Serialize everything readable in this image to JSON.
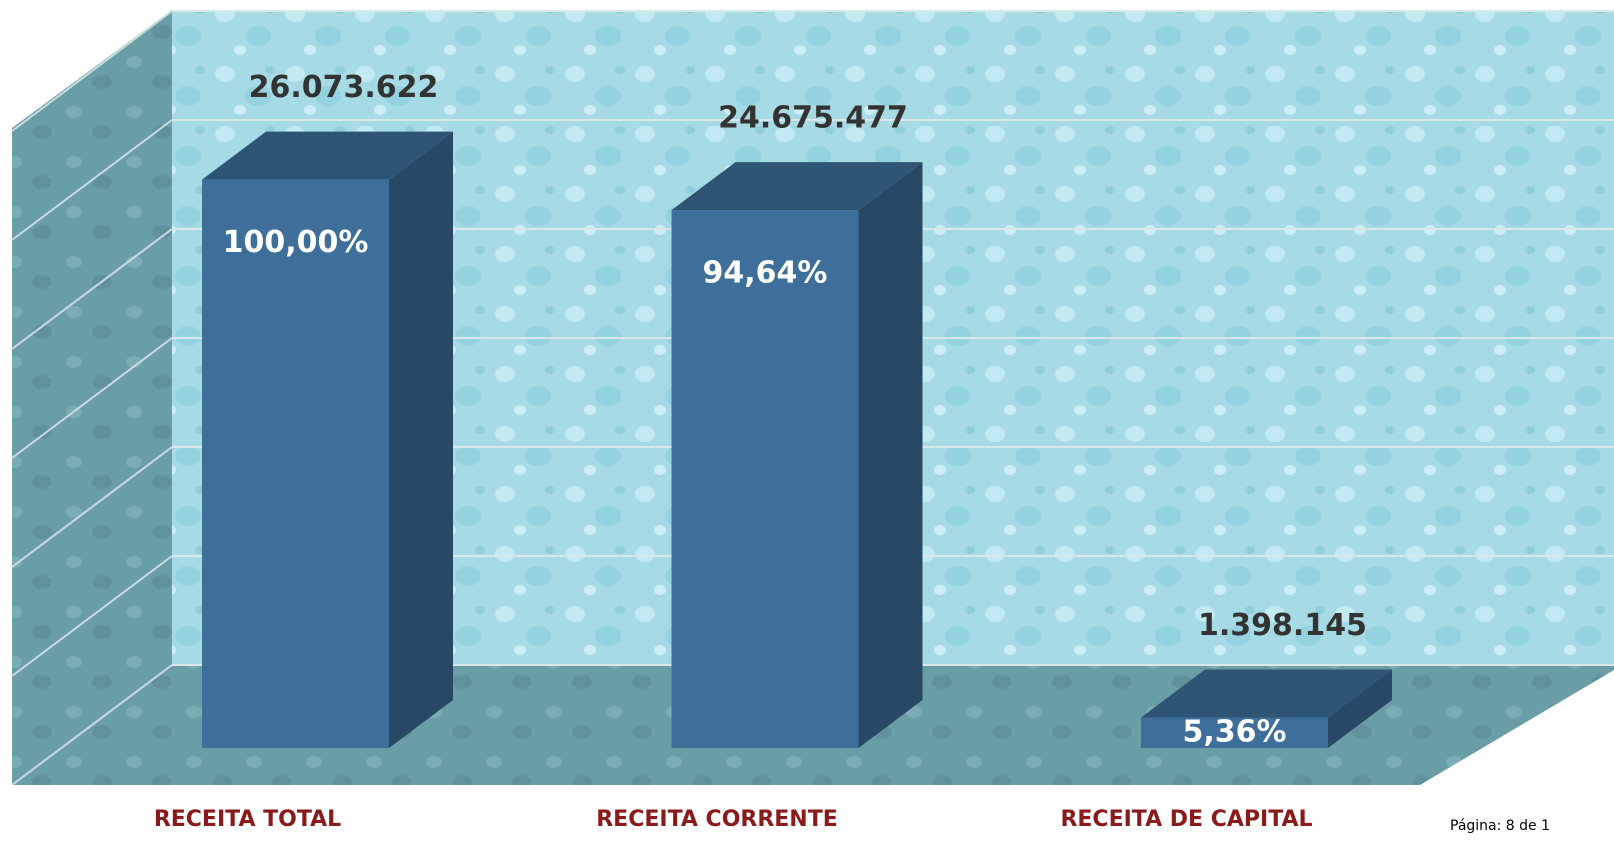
{
  "chart_data": {
    "type": "bar3d",
    "categories": [
      "RECEITA TOTAL",
      "RECEITA CORRENTE",
      "RECEITA DE CAPITAL"
    ],
    "values": [
      26073622,
      24675477,
      1398145
    ],
    "value_labels": [
      "26.073.622",
      "24.675.477",
      "1.398.145"
    ],
    "percentages": [
      100,
      94.64,
      5.36
    ],
    "percentage_labels": [
      "100,00%",
      "94,64%",
      "5,36%"
    ],
    "color": "#3d6f9a",
    "ylim": [
      0,
      30000000
    ],
    "yticks": [
      0,
      5000000,
      10000000,
      15000000,
      20000000,
      25000000,
      30000000
    ],
    "grid": true
  },
  "footer": "Página: 8 de 1"
}
